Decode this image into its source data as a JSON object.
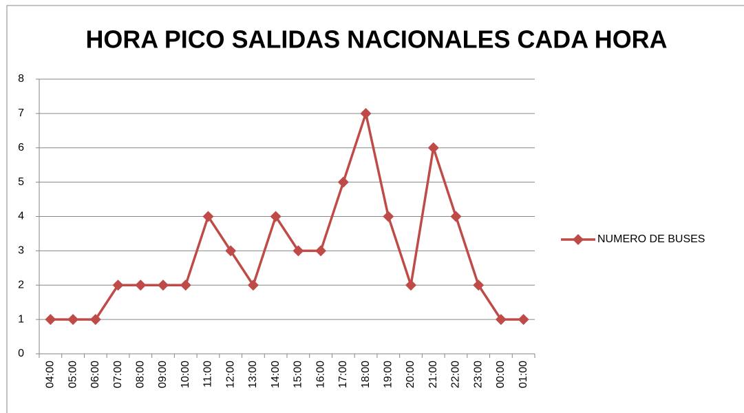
{
  "chart_data": {
    "type": "line",
    "title": "HORA PICO SALIDAS NACIONALES CADA HORA",
    "categories": [
      "04:00",
      "05:00",
      "06:00",
      "07:00",
      "08:00",
      "09:00",
      "10:00",
      "11:00",
      "12:00",
      "13:00",
      "14:00",
      "15:00",
      "16:00",
      "17:00",
      "18:00",
      "19:00",
      "20:00",
      "21:00",
      "22:00",
      "23:00",
      "00:00",
      "01:00"
    ],
    "series": [
      {
        "name": "NUMERO DE BUSES",
        "color": "#be4b48",
        "values": [
          1,
          1,
          1,
          2,
          2,
          2,
          2,
          4,
          3,
          2,
          4,
          3,
          3,
          5,
          7,
          4,
          2,
          6,
          4,
          2,
          1,
          1
        ]
      }
    ],
    "ylim": [
      0,
      8
    ],
    "yticks": [
      0,
      1,
      2,
      3,
      4,
      5,
      6,
      7,
      8
    ],
    "grid": true,
    "legend": "right"
  }
}
